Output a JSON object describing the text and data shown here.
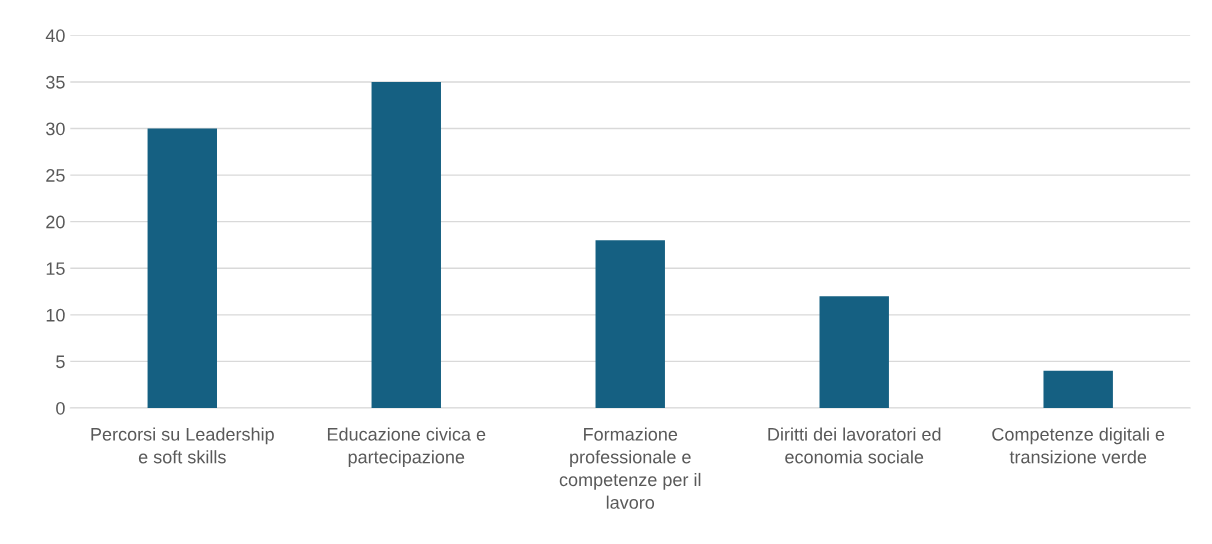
{
  "chart_data": {
    "type": "bar",
    "categories": [
      "Percorsi su Leadership\ne soft skills",
      "Educazione civica e\npartecipazione",
      "Formazione\nprofessionale e\ncompetenze per il\nlavoro",
      "Diritti dei lavoratori ed\neconomia sociale",
      "Competenze digitali e\ntransizione verde"
    ],
    "values": [
      30,
      35,
      18,
      12,
      4
    ],
    "color": "#156082",
    "ylim": [
      0,
      40
    ],
    "yticks": [
      0,
      5,
      10,
      15,
      20,
      25,
      30,
      35,
      40
    ],
    "grid": "y"
  }
}
